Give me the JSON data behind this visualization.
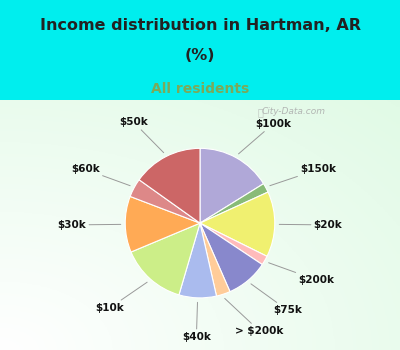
{
  "title_line1": "Income distribution in Hartman, AR",
  "title_line2": "(%)",
  "subtitle": "All residents",
  "title_color": "#222222",
  "subtitle_color": "#7aaa5a",
  "background_color": "#00EEEE",
  "chart_bg": "#e0f0e8",
  "labels": [
    "$100k",
    "$150k",
    "$20k",
    "$200k",
    "$75k",
    "> $200k",
    "$40k",
    "$10k",
    "$30k",
    "$60k",
    "$50k"
  ],
  "values": [
    16,
    2,
    14,
    2,
    9,
    3,
    8,
    14,
    12,
    4,
    15
  ],
  "wedge_colors": [
    "#b0a8d8",
    "#88bb77",
    "#f0f070",
    "#ffbbbb",
    "#8888cc",
    "#ffcc99",
    "#aabbee",
    "#ccee88",
    "#ffaa55",
    "#dd8888",
    "#cc6666"
  ],
  "label_color": "#111111",
  "watermark": "City-Data.com",
  "startangle": 90,
  "figwidth": 4.0,
  "figheight": 3.5
}
